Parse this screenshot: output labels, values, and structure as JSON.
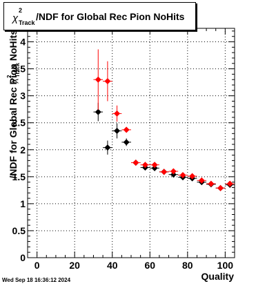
{
  "title": {
    "chi": "χ",
    "sup": "2",
    "sub": "Track",
    "rest": "/NDF for Global Rec Pion NoHits"
  },
  "date_stamp": "Wed Sep 18 16:36:12 2024",
  "chart_data": {
    "type": "scatter",
    "title": "χ2Track/NDF for Global Rec Pion NoHits",
    "xlabel": "Quality",
    "ylabel": "χ2Track/NDF",
    "xlim": [
      -5,
      105
    ],
    "ylim": [
      0,
      4.25
    ],
    "x_ticks": [
      0,
      20,
      40,
      60,
      80,
      100
    ],
    "y_ticks": [
      0,
      0.5,
      1,
      1.5,
      2,
      2.5,
      3,
      3.5,
      4
    ],
    "y_tick_labels": [
      "0",
      "0.5",
      "1",
      "1.5",
      "2",
      "2.5",
      "3",
      "3.5",
      "4"
    ],
    "grid": true,
    "series": [
      {
        "color": "#000000",
        "points": [
          {
            "x": 32.5,
            "y": 2.7,
            "err": 0.17
          },
          {
            "x": 37.5,
            "y": 2.04,
            "err": 0.13
          },
          {
            "x": 42.5,
            "y": 2.35,
            "err": 0.14
          },
          {
            "x": 47.5,
            "y": 2.14,
            "err": 0.07
          },
          {
            "x": 52.5,
            "y": 1.76,
            "err": 0.03
          },
          {
            "x": 57.5,
            "y": 1.67,
            "err": 0.03
          },
          {
            "x": 62.5,
            "y": 1.66,
            "err": 0.03
          },
          {
            "x": 67.5,
            "y": 1.59,
            "err": 0.02
          },
          {
            "x": 72.5,
            "y": 1.54,
            "err": 0.02
          },
          {
            "x": 77.5,
            "y": 1.49,
            "err": 0.02
          },
          {
            "x": 82.5,
            "y": 1.47,
            "err": 0.02
          },
          {
            "x": 87.5,
            "y": 1.4,
            "err": 0.02
          },
          {
            "x": 92.5,
            "y": 1.36,
            "err": 0.02
          },
          {
            "x": 97.5,
            "y": 1.29,
            "err": 0.02
          },
          {
            "x": 102.5,
            "y": 1.35,
            "err": 0.02
          }
        ]
      },
      {
        "color": "#ff0000",
        "points": [
          {
            "x": 32.5,
            "y": 3.3,
            "err": 0.56
          },
          {
            "x": 37.5,
            "y": 3.27,
            "err": 0.37
          },
          {
            "x": 42.5,
            "y": 2.67,
            "err": 0.15
          },
          {
            "x": 47.5,
            "y": 2.37,
            "err": 0.05
          },
          {
            "x": 52.5,
            "y": 1.76,
            "err": 0.03
          },
          {
            "x": 57.5,
            "y": 1.72,
            "err": 0.03
          },
          {
            "x": 62.5,
            "y": 1.72,
            "err": 0.03
          },
          {
            "x": 67.5,
            "y": 1.59,
            "err": 0.02
          },
          {
            "x": 72.5,
            "y": 1.6,
            "err": 0.02
          },
          {
            "x": 77.5,
            "y": 1.53,
            "err": 0.02
          },
          {
            "x": 82.5,
            "y": 1.51,
            "err": 0.02
          },
          {
            "x": 87.5,
            "y": 1.43,
            "err": 0.02
          },
          {
            "x": 92.5,
            "y": 1.37,
            "err": 0.02
          },
          {
            "x": 97.5,
            "y": 1.29,
            "err": 0.02
          },
          {
            "x": 102.5,
            "y": 1.37,
            "err": 0.02
          }
        ]
      }
    ]
  }
}
